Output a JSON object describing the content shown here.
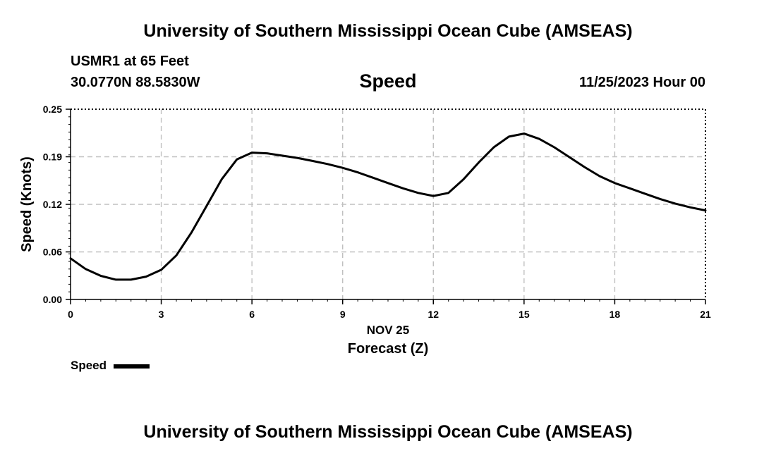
{
  "header": {
    "title": "University of Southern Mississippi Ocean Cube (AMSEAS)",
    "station": "USMR1 at 65 Feet",
    "coordinates": "30.0770N  88.5830W",
    "variable": "Speed",
    "datetime": "11/25/2023 Hour 00"
  },
  "footer": {
    "title": "University of Southern Mississippi Ocean Cube (AMSEAS)"
  },
  "legend": {
    "label": "Speed",
    "color": "#000000"
  },
  "chart_data": {
    "type": "line",
    "title": "Speed",
    "xlabel": "Forecast (Z)",
    "xlabel_date": "NOV 25",
    "ylabel": "Speed (Knots)",
    "xlim": [
      0,
      21
    ],
    "ylim": [
      0,
      0.25
    ],
    "xticks": [
      0,
      3,
      6,
      9,
      12,
      15,
      18,
      21
    ],
    "xtick_labels": [
      "0",
      "3",
      "6",
      "9",
      "12",
      "15",
      "18",
      "21"
    ],
    "yticks": [
      0,
      0.0625,
      0.125,
      0.1875,
      0.25
    ],
    "ytick_labels": [
      "0.00",
      "0.06",
      "0.12",
      "0.19",
      "0.25"
    ],
    "grid": true,
    "series": [
      {
        "name": "Speed",
        "color": "#000000",
        "x": [
          0,
          0.5,
          1,
          1.5,
          2,
          2.5,
          3,
          3.5,
          4,
          4.5,
          5,
          5.5,
          6,
          6.5,
          7,
          7.5,
          8,
          8.5,
          9,
          9.5,
          10,
          10.5,
          11,
          11.5,
          12,
          12.5,
          13,
          13.5,
          14,
          14.5,
          15,
          15.5,
          16,
          16.5,
          17,
          17.5,
          18,
          18.5,
          19,
          19.5,
          20,
          20.5,
          21
        ],
        "values": [
          0.054,
          0.04,
          0.031,
          0.026,
          0.026,
          0.03,
          0.039,
          0.058,
          0.088,
          0.123,
          0.158,
          0.184,
          0.193,
          0.192,
          0.189,
          0.186,
          0.182,
          0.178,
          0.173,
          0.167,
          0.16,
          0.153,
          0.146,
          0.14,
          0.136,
          0.14,
          0.158,
          0.18,
          0.2,
          0.214,
          0.218,
          0.211,
          0.2,
          0.187,
          0.174,
          0.162,
          0.153,
          0.146,
          0.139,
          0.132,
          0.126,
          0.121,
          0.117
        ]
      }
    ]
  }
}
